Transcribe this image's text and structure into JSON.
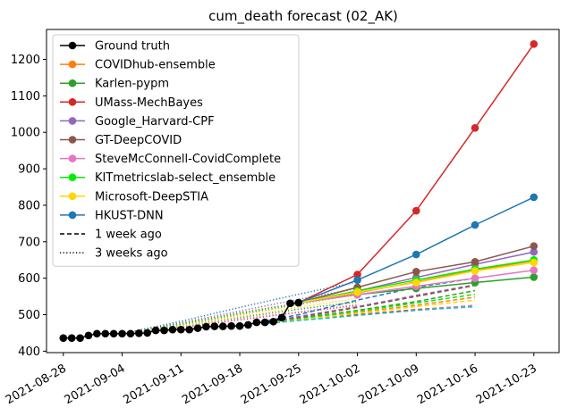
{
  "chart_data": {
    "type": "line",
    "title": "cum_death forecast (02_AK)",
    "xlabel": "",
    "ylabel": "",
    "x_tick_labels": [
      "2021-08-28",
      "2021-09-04",
      "2021-09-11",
      "2021-09-18",
      "2021-09-25",
      "2021-10-02",
      "2021-10-09",
      "2021-10-16",
      "2021-10-23"
    ],
    "y_tick_labels": [
      "400",
      "500",
      "600",
      "700",
      "800",
      "900",
      "1000",
      "1100",
      "1200"
    ],
    "xlim": [
      "2021-08-26",
      "2021-10-26"
    ],
    "ylim": [
      396,
      1282
    ],
    "grid": false,
    "legend_position": "upper left",
    "ground_truth": {
      "name": "Ground truth",
      "color": "#000000",
      "points": [
        [
          "2021-08-28",
          436
        ],
        [
          "2021-08-29",
          436
        ],
        [
          "2021-08-30",
          436
        ],
        [
          "2021-08-31",
          443
        ],
        [
          "2021-09-01",
          448
        ],
        [
          "2021-09-02",
          448
        ],
        [
          "2021-09-03",
          448
        ],
        [
          "2021-09-04",
          448
        ],
        [
          "2021-09-05",
          448
        ],
        [
          "2021-09-06",
          449
        ],
        [
          "2021-09-07",
          450
        ],
        [
          "2021-09-08",
          457
        ],
        [
          "2021-09-09",
          457
        ],
        [
          "2021-09-10",
          459
        ],
        [
          "2021-09-11",
          459
        ],
        [
          "2021-09-12",
          459
        ],
        [
          "2021-09-13",
          463
        ],
        [
          "2021-09-14",
          467
        ],
        [
          "2021-09-15",
          468
        ],
        [
          "2021-09-16",
          468
        ],
        [
          "2021-09-17",
          469
        ],
        [
          "2021-09-18",
          469
        ],
        [
          "2021-09-19",
          472
        ],
        [
          "2021-09-20",
          479
        ],
        [
          "2021-09-21",
          479
        ],
        [
          "2021-09-22",
          481
        ],
        [
          "2021-09-23",
          492
        ],
        [
          "2021-09-24",
          531
        ],
        [
          "2021-09-25",
          533
        ]
      ]
    },
    "forecast_dates": [
      "2021-09-25",
      "2021-10-02",
      "2021-10-09",
      "2021-10-16",
      "2021-10-23"
    ],
    "series": [
      {
        "name": "COVIDhub-ensemble",
        "color": "#ff7f0e",
        "values": [
          533,
          560,
          590,
          622,
          648
        ]
      },
      {
        "name": "Karlen-pypm",
        "color": "#2ca02c",
        "values": [
          533,
          555,
          572,
          588,
          603
        ]
      },
      {
        "name": "UMass-MechBayes",
        "color": "#d62728",
        "values": [
          533,
          610,
          785,
          1012,
          1242
        ]
      },
      {
        "name": "Google_Harvard-CPF",
        "color": "#9467bd",
        "values": [
          533,
          565,
          602,
          638,
          672
        ]
      },
      {
        "name": "GT-DeepCOVID",
        "color": "#8c564b",
        "values": [
          533,
          575,
          618,
          645,
          688
        ]
      },
      {
        "name": "SteveMcConnell-CovidComplete",
        "color": "#e377c2",
        "values": [
          533,
          555,
          578,
          600,
          622
        ]
      },
      {
        "name": "KITmetricslab-select_ensemble",
        "color": "#00ee00",
        "values": [
          533,
          565,
          595,
          625,
          650
        ]
      },
      {
        "name": "Microsoft-DeepSTIA",
        "color": "#ffd700",
        "values": [
          533,
          562,
          588,
          620,
          643
        ]
      },
      {
        "name": "HKUST-DNN",
        "color": "#1f77b4",
        "values": [
          533,
          595,
          665,
          746,
          822
        ]
      }
    ],
    "past_forecasts": {
      "1_week_ago": {
        "label": "1 week ago",
        "start": "2021-09-18",
        "lines": [
          {
            "color": "#ff7f0e",
            "values": [
              469,
              488,
              507,
              526,
              548
            ]
          },
          {
            "color": "#2ca02c",
            "values": [
              469,
              490,
              512,
              536,
              566
            ]
          },
          {
            "color": "#d62728",
            "values": [
              469,
              486,
              500,
              514,
              525
            ]
          },
          {
            "color": "#9467bd",
            "values": [
              469,
              495,
              522,
              553,
              582
            ]
          },
          {
            "color": "#8c564b",
            "values": [
              469,
              492,
              520,
              550,
              580
            ]
          },
          {
            "color": "#e377c2",
            "values": [
              469,
              485,
              498,
              512,
              526
            ]
          },
          {
            "color": "#00ee00",
            "values": [
              469,
              488,
              510,
              532,
              556
            ]
          },
          {
            "color": "#ffd700",
            "values": [
              469,
              486,
              504,
              522,
              540
            ]
          },
          {
            "color": "#1f77b4",
            "values": [
              469,
              500,
              540,
              575,
              600
            ]
          },
          {
            "color": "#17becf",
            "values": [
              469,
              484,
              498,
              512,
              522
            ]
          }
        ]
      },
      "3_weeks_ago": {
        "label": "3 weeks ago",
        "start": "2021-09-04",
        "lines": [
          {
            "color": "#ff7f0e",
            "values": [
              448,
              472,
              500,
              528,
              556
            ]
          },
          {
            "color": "#2ca02c",
            "values": [
              448,
              470,
              492,
              515,
              535
            ]
          },
          {
            "color": "#d62728",
            "values": [
              448,
              465,
              486,
              506,
              526
            ]
          },
          {
            "color": "#9467bd",
            "values": [
              448,
              478,
              510,
              542,
              572
            ]
          },
          {
            "color": "#8c564b",
            "values": [
              448,
              475,
              505,
              532,
              560
            ]
          },
          {
            "color": "#e377c2",
            "values": [
              448,
              468,
              488,
              508,
              528
            ]
          },
          {
            "color": "#00ee00",
            "values": [
              448,
              474,
              502,
              530,
              560
            ]
          },
          {
            "color": "#ffd700",
            "values": [
              448,
              470,
              495,
              520,
              545
            ]
          },
          {
            "color": "#1f77b4",
            "values": [
              448,
              482,
              520,
              556,
              590
            ]
          }
        ]
      }
    },
    "legend": [
      {
        "label": "Ground truth",
        "color": "#000000",
        "style": "solid-marker"
      },
      {
        "label": "COVIDhub-ensemble",
        "color": "#ff7f0e",
        "style": "solid-marker"
      },
      {
        "label": "Karlen-pypm",
        "color": "#2ca02c",
        "style": "solid-marker"
      },
      {
        "label": "UMass-MechBayes",
        "color": "#d62728",
        "style": "solid-marker"
      },
      {
        "label": "Google_Harvard-CPF",
        "color": "#9467bd",
        "style": "solid-marker"
      },
      {
        "label": "GT-DeepCOVID",
        "color": "#8c564b",
        "style": "solid-marker"
      },
      {
        "label": "SteveMcConnell-CovidComplete",
        "color": "#e377c2",
        "style": "solid-marker"
      },
      {
        "label": "KITmetricslab-select_ensemble",
        "color": "#00ee00",
        "style": "solid-marker"
      },
      {
        "label": "Microsoft-DeepSTIA",
        "color": "#ffd700",
        "style": "solid-marker"
      },
      {
        "label": "HKUST-DNN",
        "color": "#1f77b4",
        "style": "solid-marker"
      },
      {
        "label": "1 week ago",
        "color": "#000000",
        "style": "dashed"
      },
      {
        "label": "3 weeks ago",
        "color": "#000000",
        "style": "dotted"
      }
    ]
  }
}
